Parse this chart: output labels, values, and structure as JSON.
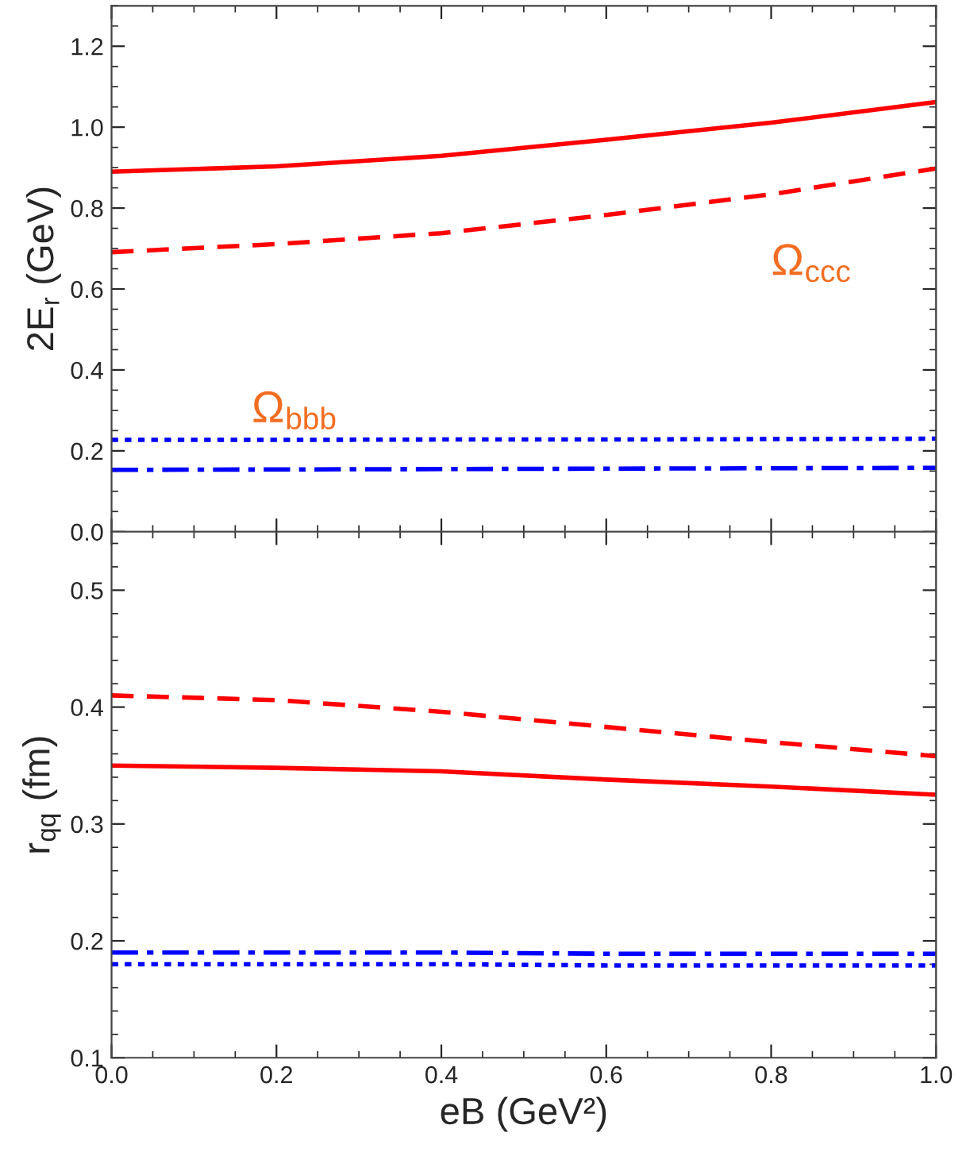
{
  "chart_data": [
    {
      "type": "line",
      "ylabel": "2E$_{r}$ (GeV)",
      "x": [
        0,
        0.2,
        0.4,
        0.6,
        0.8,
        1.0
      ],
      "series": [
        {
          "color": "#ff0000",
          "line_style": "solid",
          "values": [
            0.89,
            0.903,
            0.929,
            0.969,
            1.011,
            1.062
          ]
        },
        {
          "color": "#ff0000",
          "line_style": "dashed",
          "values": [
            0.691,
            0.711,
            0.738,
            0.783,
            0.834,
            0.898
          ]
        },
        {
          "color": "#0000ff",
          "line_style": "dotted",
          "values": [
            0.227,
            0.227,
            0.228,
            0.228,
            0.229,
            0.23
          ]
        },
        {
          "color": "#0000ff",
          "line_style": "dashdot",
          "values": [
            0.153,
            0.154,
            0.155,
            0.156,
            0.157,
            0.158
          ]
        }
      ],
      "annotations": [
        "Ω$_{ccc}$",
        "Ω$_{bbb}$"
      ],
      "xlim": [
        0,
        1.0
      ],
      "xticks": [
        0.0,
        0.2,
        0.4,
        0.6,
        0.8,
        1.0
      ],
      "ylim": [
        0,
        1.3
      ],
      "yticks": [
        {
          "value": 0,
          "label": "0.0"
        },
        0.2,
        0.4,
        0.6,
        0.8,
        {
          "value": 1,
          "label": "1.0"
        },
        1.2
      ],
      "tick_labels": "y",
      "grid": false,
      "legend": false
    },
    {
      "type": "line",
      "xlabel": "eB (GeV²)",
      "ylabel": "r$_{qq}$ (fm)",
      "x": [
        0,
        0.2,
        0.4,
        0.6,
        0.8,
        1.0
      ],
      "series": [
        {
          "color": "#ff0000",
          "line_style": "solid",
          "values": [
            0.35,
            0.348,
            0.345,
            0.338,
            0.332,
            0.325
          ]
        },
        {
          "color": "#ff0000",
          "line_style": "dashed",
          "values": [
            0.41,
            0.406,
            0.396,
            0.383,
            0.37,
            0.358
          ]
        },
        {
          "color": "#0000ff",
          "line_style": "dotted",
          "values": [
            0.18,
            0.18,
            0.18,
            0.179,
            0.179,
            0.179
          ]
        },
        {
          "color": "#0000ff",
          "line_style": "dashdot",
          "values": [
            0.19,
            0.19,
            0.19,
            0.189,
            0.189,
            0.189
          ]
        }
      ],
      "xlim": [
        0,
        1.0
      ],
      "xticks": [
        {
          "value": 0,
          "label": "0.0"
        },
        0.2,
        0.4,
        0.6,
        0.8,
        {
          "value": 1,
          "label": "1.0"
        }
      ],
      "ylim": [
        0.1,
        0.55
      ],
      "yticks": [
        0.1,
        0.2,
        0.3,
        0.4,
        0.5
      ],
      "grid": false,
      "legend": false
    }
  ]
}
